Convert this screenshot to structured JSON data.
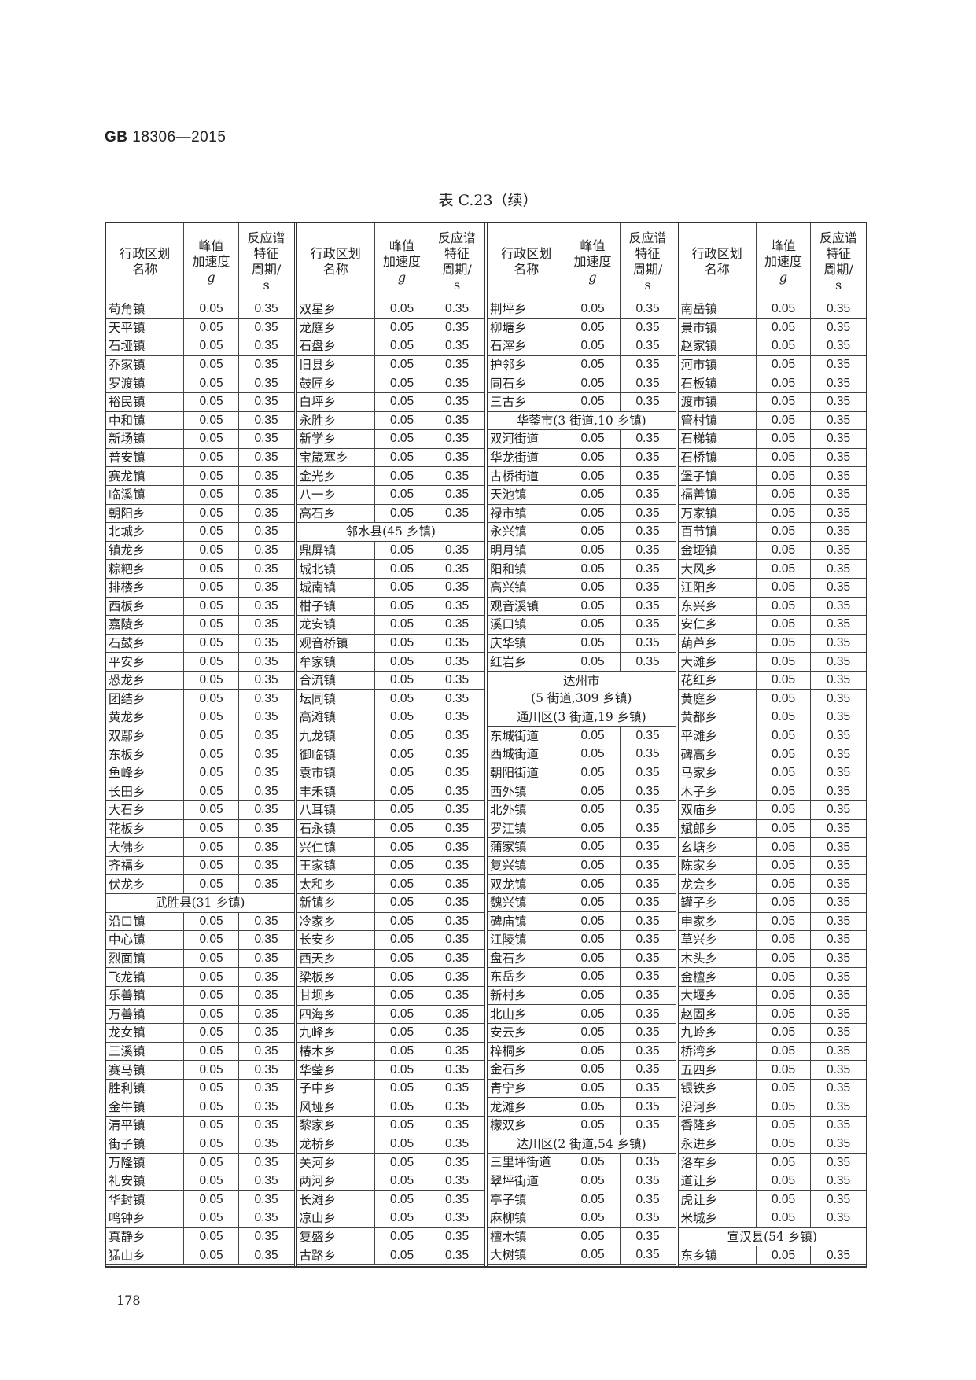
{
  "header": {
    "standard_code": "GB",
    "standard_number": "18306—2015"
  },
  "table_title": "表 C.23（续）",
  "columns": {
    "name": [
      "行政区划",
      "名称"
    ],
    "pga": [
      "峰值",
      "加速度",
      "g"
    ],
    "period": [
      "反应谱",
      "特征",
      "周期/",
      "s"
    ]
  },
  "groups": [
    [
      [
        "苟角镇",
        "0.05",
        "0.35"
      ],
      [
        "天平镇",
        "0.05",
        "0.35"
      ],
      [
        "石垭镇",
        "0.05",
        "0.35"
      ],
      [
        "乔家镇",
        "0.05",
        "0.35"
      ],
      [
        "罗渡镇",
        "0.05",
        "0.35"
      ],
      [
        "裕民镇",
        "0.05",
        "0.35"
      ],
      [
        "中和镇",
        "0.05",
        "0.35"
      ],
      [
        "新场镇",
        "0.05",
        "0.35"
      ],
      [
        "普安镇",
        "0.05",
        "0.35"
      ],
      [
        "赛龙镇",
        "0.05",
        "0.35"
      ],
      [
        "临溪镇",
        "0.05",
        "0.35"
      ],
      [
        "朝阳乡",
        "0.05",
        "0.35"
      ],
      [
        "北城乡",
        "0.05",
        "0.35"
      ],
      [
        "镇龙乡",
        "0.05",
        "0.35"
      ],
      [
        "粽粑乡",
        "0.05",
        "0.35"
      ],
      [
        "排楼乡",
        "0.05",
        "0.35"
      ],
      [
        "西板乡",
        "0.05",
        "0.35"
      ],
      [
        "嘉陵乡",
        "0.05",
        "0.35"
      ],
      [
        "石鼓乡",
        "0.05",
        "0.35"
      ],
      [
        "平安乡",
        "0.05",
        "0.35"
      ],
      [
        "恐龙乡",
        "0.05",
        "0.35"
      ],
      [
        "团结乡",
        "0.05",
        "0.35"
      ],
      [
        "黄龙乡",
        "0.05",
        "0.35"
      ],
      [
        "双鄢乡",
        "0.05",
        "0.35"
      ],
      [
        "东板乡",
        "0.05",
        "0.35"
      ],
      [
        "鱼峰乡",
        "0.05",
        "0.35"
      ],
      [
        "长田乡",
        "0.05",
        "0.35"
      ],
      [
        "大石乡",
        "0.05",
        "0.35"
      ],
      [
        "花板乡",
        "0.05",
        "0.35"
      ],
      [
        "大佛乡",
        "0.05",
        "0.35"
      ],
      [
        "齐福乡",
        "0.05",
        "0.35"
      ],
      [
        "伏龙乡",
        "0.05",
        "0.35"
      ],
      {
        "span": "武胜县(31 乡镇)"
      },
      [
        "沿口镇",
        "0.05",
        "0.35"
      ],
      [
        "中心镇",
        "0.05",
        "0.35"
      ],
      [
        "烈面镇",
        "0.05",
        "0.35"
      ],
      [
        "飞龙镇",
        "0.05",
        "0.35"
      ],
      [
        "乐善镇",
        "0.05",
        "0.35"
      ],
      [
        "万善镇",
        "0.05",
        "0.35"
      ],
      [
        "龙女镇",
        "0.05",
        "0.35"
      ],
      [
        "三溪镇",
        "0.05",
        "0.35"
      ],
      [
        "赛马镇",
        "0.05",
        "0.35"
      ],
      [
        "胜利镇",
        "0.05",
        "0.35"
      ],
      [
        "金牛镇",
        "0.05",
        "0.35"
      ],
      [
        "清平镇",
        "0.05",
        "0.35"
      ],
      [
        "街子镇",
        "0.05",
        "0.35"
      ],
      [
        "万隆镇",
        "0.05",
        "0.35"
      ],
      [
        "礼安镇",
        "0.05",
        "0.35"
      ],
      [
        "华封镇",
        "0.05",
        "0.35"
      ],
      [
        "鸣钟乡",
        "0.05",
        "0.35"
      ],
      [
        "真静乡",
        "0.05",
        "0.35"
      ],
      [
        "猛山乡",
        "0.05",
        "0.35"
      ]
    ],
    [
      [
        "双星乡",
        "0.05",
        "0.35"
      ],
      [
        "龙庭乡",
        "0.05",
        "0.35"
      ],
      [
        "石盘乡",
        "0.05",
        "0.35"
      ],
      [
        "旧县乡",
        "0.05",
        "0.35"
      ],
      [
        "鼓匠乡",
        "0.05",
        "0.35"
      ],
      [
        "白坪乡",
        "0.05",
        "0.35"
      ],
      [
        "永胜乡",
        "0.05",
        "0.35"
      ],
      [
        "新学乡",
        "0.05",
        "0.35"
      ],
      [
        "宝箴塞乡",
        "0.05",
        "0.35"
      ],
      [
        "金光乡",
        "0.05",
        "0.35"
      ],
      [
        "八一乡",
        "0.05",
        "0.35"
      ],
      [
        "高石乡",
        "0.05",
        "0.35"
      ],
      {
        "span": "邻水县(45 乡镇)"
      },
      [
        "鼎屏镇",
        "0.05",
        "0.35"
      ],
      [
        "城北镇",
        "0.05",
        "0.35"
      ],
      [
        "城南镇",
        "0.05",
        "0.35"
      ],
      [
        "柑子镇",
        "0.05",
        "0.35"
      ],
      [
        "龙安镇",
        "0.05",
        "0.35"
      ],
      [
        "观音桥镇",
        "0.05",
        "0.35"
      ],
      [
        "牟家镇",
        "0.05",
        "0.35"
      ],
      [
        "合流镇",
        "0.05",
        "0.35"
      ],
      [
        "坛同镇",
        "0.05",
        "0.35"
      ],
      [
        "高滩镇",
        "0.05",
        "0.35"
      ],
      [
        "九龙镇",
        "0.05",
        "0.35"
      ],
      [
        "御临镇",
        "0.05",
        "0.35"
      ],
      [
        "袁市镇",
        "0.05",
        "0.35"
      ],
      [
        "丰禾镇",
        "0.05",
        "0.35"
      ],
      [
        "八耳镇",
        "0.05",
        "0.35"
      ],
      [
        "石永镇",
        "0.05",
        "0.35"
      ],
      [
        "兴仁镇",
        "0.05",
        "0.35"
      ],
      [
        "王家镇",
        "0.05",
        "0.35"
      ],
      [
        "太和乡",
        "0.05",
        "0.35"
      ],
      [
        "新镇乡",
        "0.05",
        "0.35"
      ],
      [
        "冷家乡",
        "0.05",
        "0.35"
      ],
      [
        "长安乡",
        "0.05",
        "0.35"
      ],
      [
        "西天乡",
        "0.05",
        "0.35"
      ],
      [
        "梁板乡",
        "0.05",
        "0.35"
      ],
      [
        "甘坝乡",
        "0.05",
        "0.35"
      ],
      [
        "四海乡",
        "0.05",
        "0.35"
      ],
      [
        "九峰乡",
        "0.05",
        "0.35"
      ],
      [
        "椿木乡",
        "0.05",
        "0.35"
      ],
      [
        "华蓥乡",
        "0.05",
        "0.35"
      ],
      [
        "子中乡",
        "0.05",
        "0.35"
      ],
      [
        "风垭乡",
        "0.05",
        "0.35"
      ],
      [
        "黎家乡",
        "0.05",
        "0.35"
      ],
      [
        "龙桥乡",
        "0.05",
        "0.35"
      ],
      [
        "关河乡",
        "0.05",
        "0.35"
      ],
      [
        "两河乡",
        "0.05",
        "0.35"
      ],
      [
        "长滩乡",
        "0.05",
        "0.35"
      ],
      [
        "凉山乡",
        "0.05",
        "0.35"
      ],
      [
        "复盛乡",
        "0.05",
        "0.35"
      ],
      [
        "古路乡",
        "0.05",
        "0.35"
      ]
    ],
    [
      [
        "荆坪乡",
        "0.05",
        "0.35"
      ],
      [
        "柳塘乡",
        "0.05",
        "0.35"
      ],
      [
        "石滓乡",
        "0.05",
        "0.35"
      ],
      [
        "护邻乡",
        "0.05",
        "0.35"
      ],
      [
        "同石乡",
        "0.05",
        "0.35"
      ],
      [
        "三古乡",
        "0.05",
        "0.35"
      ],
      {
        "span": "华蓥市(3 街道,10 乡镇)"
      },
      [
        "双河街道",
        "0.05",
        "0.35"
      ],
      [
        "华龙街道",
        "0.05",
        "0.35"
      ],
      [
        "古桥街道",
        "0.05",
        "0.35"
      ],
      [
        "天池镇",
        "0.05",
        "0.35"
      ],
      [
        "禄市镇",
        "0.05",
        "0.35"
      ],
      [
        "永兴镇",
        "0.05",
        "0.35"
      ],
      [
        "明月镇",
        "0.05",
        "0.35"
      ],
      [
        "阳和镇",
        "0.05",
        "0.35"
      ],
      [
        "高兴镇",
        "0.05",
        "0.35"
      ],
      [
        "观音溪镇",
        "0.05",
        "0.35"
      ],
      [
        "溪口镇",
        "0.05",
        "0.35"
      ],
      [
        "庆华镇",
        "0.05",
        "0.35"
      ],
      [
        "红岩乡",
        "0.05",
        "0.35"
      ],
      {
        "span": "达州市",
        "span2": "(5 街道,309 乡镇)"
      },
      {
        "span": "通川区(3 街道,19 乡镇)"
      },
      [
        "东城街道",
        "0.05",
        "0.35"
      ],
      [
        "西城街道",
        "0.05",
        "0.35"
      ],
      [
        "朝阳街道",
        "0.05",
        "0.35"
      ],
      [
        "西外镇",
        "0.05",
        "0.35"
      ],
      [
        "北外镇",
        "0.05",
        "0.35"
      ],
      [
        "罗江镇",
        "0.05",
        "0.35"
      ],
      [
        "蒲家镇",
        "0.05",
        "0.35"
      ],
      [
        "复兴镇",
        "0.05",
        "0.35"
      ],
      [
        "双龙镇",
        "0.05",
        "0.35"
      ],
      [
        "魏兴镇",
        "0.05",
        "0.35"
      ],
      [
        "碑庙镇",
        "0.05",
        "0.35"
      ],
      [
        "江陵镇",
        "0.05",
        "0.35"
      ],
      [
        "盘石乡",
        "0.05",
        "0.35"
      ],
      [
        "东岳乡",
        "0.05",
        "0.35"
      ],
      [
        "新村乡",
        "0.05",
        "0.35"
      ],
      [
        "北山乡",
        "0.05",
        "0.35"
      ],
      [
        "安云乡",
        "0.05",
        "0.35"
      ],
      [
        "梓桐乡",
        "0.05",
        "0.35"
      ],
      [
        "金石乡",
        "0.05",
        "0.35"
      ],
      [
        "青宁乡",
        "0.05",
        "0.35"
      ],
      [
        "龙滩乡",
        "0.05",
        "0.35"
      ],
      [
        "檬双乡",
        "0.05",
        "0.35"
      ],
      {
        "span": "达川区(2 街道,54 乡镇)"
      },
      [
        "三里坪街道",
        "0.05",
        "0.35"
      ],
      [
        "翠坪街道",
        "0.05",
        "0.35"
      ],
      [
        "亭子镇",
        "0.05",
        "0.35"
      ],
      [
        "麻柳镇",
        "0.05",
        "0.35"
      ],
      [
        "檀木镇",
        "0.05",
        "0.35"
      ],
      [
        "大树镇",
        "0.05",
        "0.35"
      ]
    ],
    [
      [
        "南岳镇",
        "0.05",
        "0.35"
      ],
      [
        "景市镇",
        "0.05",
        "0.35"
      ],
      [
        "赵家镇",
        "0.05",
        "0.35"
      ],
      [
        "河市镇",
        "0.05",
        "0.35"
      ],
      [
        "石板镇",
        "0.05",
        "0.35"
      ],
      [
        "渡市镇",
        "0.05",
        "0.35"
      ],
      [
        "管村镇",
        "0.05",
        "0.35"
      ],
      [
        "石梯镇",
        "0.05",
        "0.35"
      ],
      [
        "石桥镇",
        "0.05",
        "0.35"
      ],
      [
        "堡子镇",
        "0.05",
        "0.35"
      ],
      [
        "福善镇",
        "0.05",
        "0.35"
      ],
      [
        "万家镇",
        "0.05",
        "0.35"
      ],
      [
        "百节镇",
        "0.05",
        "0.35"
      ],
      [
        "金垭镇",
        "0.05",
        "0.35"
      ],
      [
        "大风乡",
        "0.05",
        "0.35"
      ],
      [
        "江阳乡",
        "0.05",
        "0.35"
      ],
      [
        "东兴乡",
        "0.05",
        "0.35"
      ],
      [
        "安仁乡",
        "0.05",
        "0.35"
      ],
      [
        "葫芦乡",
        "0.05",
        "0.35"
      ],
      [
        "大滩乡",
        "0.05",
        "0.35"
      ],
      [
        "花红乡",
        "0.05",
        "0.35"
      ],
      [
        "黄庭乡",
        "0.05",
        "0.35"
      ],
      [
        "黄都乡",
        "0.05",
        "0.35"
      ],
      [
        "平滩乡",
        "0.05",
        "0.35"
      ],
      [
        "碑高乡",
        "0.05",
        "0.35"
      ],
      [
        "马家乡",
        "0.05",
        "0.35"
      ],
      [
        "木子乡",
        "0.05",
        "0.35"
      ],
      [
        "双庙乡",
        "0.05",
        "0.35"
      ],
      [
        "斌郎乡",
        "0.05",
        "0.35"
      ],
      [
        "幺塘乡",
        "0.05",
        "0.35"
      ],
      [
        "陈家乡",
        "0.05",
        "0.35"
      ],
      [
        "龙会乡",
        "0.05",
        "0.35"
      ],
      [
        "罐子乡",
        "0.05",
        "0.35"
      ],
      [
        "申家乡",
        "0.05",
        "0.35"
      ],
      [
        "草兴乡",
        "0.05",
        "0.35"
      ],
      [
        "木头乡",
        "0.05",
        "0.35"
      ],
      [
        "金檀乡",
        "0.05",
        "0.35"
      ],
      [
        "大堰乡",
        "0.05",
        "0.35"
      ],
      [
        "赵固乡",
        "0.05",
        "0.35"
      ],
      [
        "九岭乡",
        "0.05",
        "0.35"
      ],
      [
        "桥湾乡",
        "0.05",
        "0.35"
      ],
      [
        "五四乡",
        "0.05",
        "0.35"
      ],
      [
        "银铁乡",
        "0.05",
        "0.35"
      ],
      [
        "沿河乡",
        "0.05",
        "0.35"
      ],
      [
        "香隆乡",
        "0.05",
        "0.35"
      ],
      [
        "永进乡",
        "0.05",
        "0.35"
      ],
      [
        "洛车乡",
        "0.05",
        "0.35"
      ],
      [
        "道让乡",
        "0.05",
        "0.35"
      ],
      [
        "虎让乡",
        "0.05",
        "0.35"
      ],
      [
        "米城乡",
        "0.05",
        "0.35"
      ],
      {
        "span": "宣汉县(54 乡镇)"
      },
      [
        "东乡镇",
        "0.05",
        "0.35"
      ]
    ]
  ],
  "page_number": "178"
}
